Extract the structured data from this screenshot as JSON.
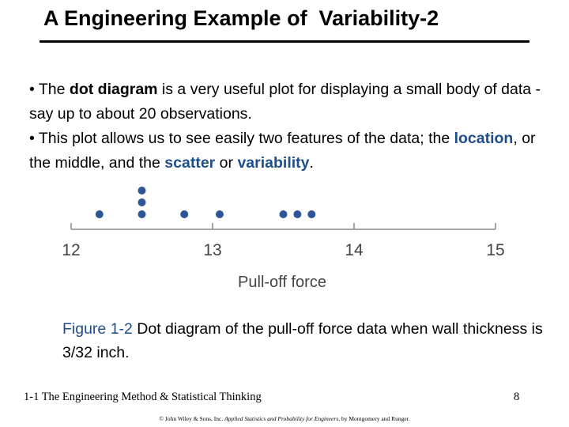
{
  "slide": {
    "title": "A Engineering Example of  Variability-2",
    "bullet1": {
      "bullet": "•",
      "t1": " The ",
      "term": "dot diagram",
      "t2": " is a very useful plot for displaying a small body of data - say up to about 20 observations."
    },
    "bullet2": {
      "bullet": "•",
      "t1": " This plot allows us to see easily two features of the data; the ",
      "location": "location",
      "t2": ", or the middle, and the ",
      "scatter": "scatter",
      "t3": " or ",
      "variability": "variability",
      "t4": "."
    },
    "caption": {
      "label": "Figure 1-2",
      "text": "  Dot diagram of the pull-off force data when wall thickness is 3/32 inch."
    },
    "footer_left": "1-1 The Engineering Method & Statistical Thinking",
    "page_number": "8",
    "copyright": {
      "prefix": "© John Wiley & Sons, Inc.  ",
      "book": "Applied Statistics and Probability for Engineers",
      "suffix": ", by Montgomery and Runger."
    },
    "accent_color": "#1f4e8c",
    "dot_color": "#2f5597"
  },
  "chart_data": {
    "type": "scatter",
    "subtype": "dot diagram",
    "xlabel": "Pull-off force",
    "xlim": [
      12,
      15
    ],
    "ticks": [
      "12",
      "13",
      "14",
      "15"
    ],
    "values": [
      12.2,
      12.5,
      12.5,
      12.5,
      12.8,
      13.05,
      13.5,
      13.6,
      13.7
    ],
    "color": "#2f5597"
  }
}
